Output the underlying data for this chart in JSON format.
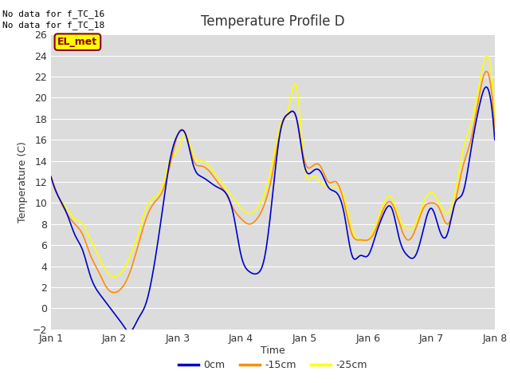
{
  "title": "Temperature Profile D",
  "xlabel": "Time",
  "ylabel": "Temperature (C)",
  "ylim": [
    -2,
    26
  ],
  "background_color": "#dcdcdc",
  "figure_facecolor": "#ffffff",
  "no_data_text": [
    "No data for f_TC_16",
    "No data for f_TC_18"
  ],
  "el_met_label": "EL_met",
  "el_met_color": "#ffff00",
  "el_met_text_color": "#8b0000",
  "line_colors": {
    "0cm": "#0000cc",
    "-15cm": "#ff8c00",
    "-25cm": "#ffff00"
  },
  "line_labels": [
    "0cm",
    "-15cm",
    "-25cm"
  ],
  "yticks": [
    -2,
    0,
    2,
    4,
    6,
    8,
    10,
    12,
    14,
    16,
    18,
    20,
    22,
    24,
    26
  ],
  "xtick_labels": [
    "Jan 1",
    "Jan 2",
    "Jan 3",
    "Jan 4",
    "Jan 5",
    "Jan 6",
    "Jan 7",
    "Jan 8"
  ],
  "t_ctrl": [
    0,
    3,
    6,
    9,
    12,
    15,
    18,
    21,
    24,
    27,
    30,
    33,
    36,
    39,
    42,
    45,
    48,
    51,
    54,
    57,
    60,
    63,
    66,
    69,
    72,
    75,
    78,
    81,
    84,
    87,
    90,
    93,
    96,
    99,
    102,
    105,
    108,
    111,
    114,
    117,
    120,
    123,
    126,
    129,
    132,
    135,
    138,
    141,
    144,
    147,
    150,
    153,
    156,
    159,
    162,
    165,
    168
  ],
  "y_blue": [
    12.5,
    10.5,
    9.0,
    7.0,
    5.5,
    3.0,
    1.5,
    0.5,
    -0.5,
    -1.5,
    -2.2,
    -1.0,
    0.5,
    4.0,
    9.0,
    14.0,
    16.5,
    16.5,
    13.5,
    12.5,
    12.0,
    11.5,
    11.0,
    9.0,
    5.0,
    3.5,
    3.3,
    5.0,
    11.0,
    17.0,
    18.5,
    18.0,
    13.5,
    13.0,
    13.0,
    11.5,
    11.0,
    9.0,
    5.0,
    5.0,
    5.0,
    7.0,
    9.0,
    9.5,
    6.5,
    5.0,
    5.0,
    7.5,
    9.5,
    7.5,
    7.0,
    10.0,
    11.0,
    15.0,
    19.0,
    21.0,
    16.0
  ],
  "y_orange": [
    12.5,
    10.5,
    9.0,
    8.0,
    7.0,
    5.0,
    3.5,
    2.0,
    1.5,
    2.0,
    3.5,
    6.0,
    8.5,
    10.0,
    11.0,
    13.5,
    16.5,
    16.5,
    14.0,
    13.5,
    13.0,
    12.0,
    11.0,
    9.5,
    8.5,
    8.0,
    8.5,
    10.0,
    13.0,
    17.0,
    18.5,
    18.0,
    14.0,
    13.5,
    13.5,
    12.0,
    12.0,
    10.0,
    7.0,
    6.5,
    6.5,
    7.5,
    9.5,
    10.0,
    8.0,
    6.5,
    7.5,
    9.5,
    10.0,
    9.5,
    8.0,
    10.0,
    13.5,
    16.0,
    20.0,
    22.5,
    17.0
  ],
  "y_yellow": [
    12.5,
    10.5,
    9.5,
    8.5,
    8.0,
    6.5,
    5.0,
    3.5,
    3.0,
    3.5,
    5.0,
    7.0,
    9.5,
    10.5,
    11.5,
    14.0,
    15.0,
    16.5,
    14.5,
    14.0,
    13.5,
    12.5,
    11.5,
    10.5,
    9.5,
    9.0,
    9.5,
    11.0,
    14.0,
    17.5,
    19.0,
    21.0,
    13.5,
    12.5,
    12.0,
    11.5,
    11.5,
    10.5,
    7.5,
    6.5,
    6.5,
    8.0,
    10.0,
    10.5,
    8.5,
    7.5,
    8.0,
    10.0,
    11.0,
    10.0,
    9.0,
    11.0,
    15.0,
    17.5,
    21.0,
    24.0,
    18.0
  ]
}
